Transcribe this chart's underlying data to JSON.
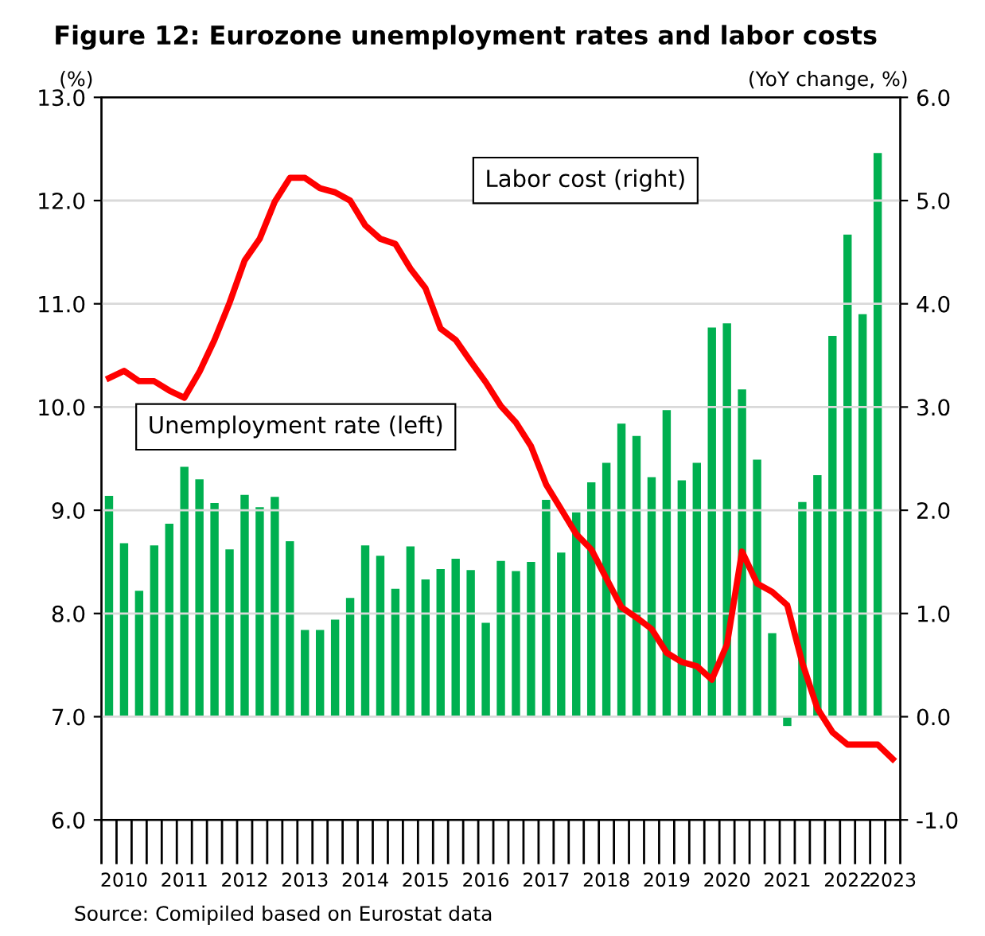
{
  "chart_data": {
    "type": "bar",
    "title": "Figure 12: Eurozone unemployment rates and labor costs",
    "ylabel": "(%)",
    "y2label": "(YoY change, %)",
    "categories": [
      null,
      "2010",
      null,
      null,
      null,
      "2011",
      null,
      null,
      null,
      "2012",
      null,
      null,
      null,
      "2013",
      null,
      null,
      null,
      "2014",
      null,
      null,
      null,
      "2015",
      null,
      null,
      null,
      "2016",
      null,
      null,
      null,
      "2017",
      null,
      null,
      null,
      "2018",
      null,
      null,
      null,
      "2019",
      null,
      null,
      null,
      "2020",
      null,
      null,
      null,
      "2021",
      null,
      null,
      null,
      "2022",
      null,
      null,
      "2023"
    ],
    "series": [
      {
        "axis": "y2",
        "color": "#00b050",
        "values": [
          2.14,
          1.68,
          1.22,
          1.66,
          1.87,
          2.42,
          2.3,
          2.07,
          1.62,
          2.15,
          2.03,
          2.13,
          1.7,
          0.84,
          0.84,
          0.94,
          1.15,
          1.66,
          1.56,
          1.24,
          1.65,
          1.33,
          1.43,
          1.53,
          1.42,
          0.91,
          1.51,
          1.41,
          1.5,
          2.1,
          1.59,
          1.98,
          2.27,
          2.46,
          2.84,
          2.72,
          2.32,
          2.97,
          2.29,
          2.46,
          3.77,
          3.81,
          3.17,
          2.49,
          0.81,
          -0.09,
          2.08,
          2.34,
          3.69,
          4.67,
          3.9,
          5.46,
          null
        ]
      },
      {
        "type": "line",
        "color": "#ff0000",
        "values": [
          10.28,
          10.35,
          10.25,
          10.25,
          10.16,
          10.09,
          10.34,
          10.65,
          11.01,
          11.42,
          11.63,
          11.99,
          12.22,
          12.22,
          12.12,
          12.08,
          12.0,
          11.76,
          11.63,
          11.58,
          11.34,
          11.15,
          10.76,
          10.65,
          10.44,
          10.24,
          10.01,
          9.85,
          9.62,
          9.25,
          9.01,
          8.77,
          8.62,
          8.34,
          8.06,
          7.96,
          7.85,
          7.62,
          7.53,
          7.49,
          7.36,
          7.7,
          8.6,
          8.29,
          8.21,
          8.08,
          7.52,
          7.08,
          6.85,
          6.73,
          6.73,
          6.73,
          6.59
        ]
      }
    ],
    "ylim": [
      6,
      13
    ],
    "yticks": [
      {
        "value": 6,
        "label": "6.0"
      },
      {
        "value": 7,
        "label": "7.0"
      },
      {
        "value": 8,
        "label": "8.0"
      },
      {
        "value": 9,
        "label": "9.0"
      },
      {
        "value": 10,
        "label": "10.0"
      },
      {
        "value": 11,
        "label": "11.0"
      },
      {
        "value": 12,
        "label": "12.0"
      },
      {
        "value": 13,
        "label": "13.0"
      }
    ],
    "y2lim": [
      -1,
      6
    ],
    "y2ticks": [
      {
        "value": -1,
        "label": "-1.0"
      },
      {
        "value": 0,
        "label": "0.0"
      },
      {
        "value": 1,
        "label": "1.0"
      },
      {
        "value": 2,
        "label": "2.0"
      },
      {
        "value": 3,
        "label": "3.0"
      },
      {
        "value": 4,
        "label": "4.0"
      },
      {
        "value": 5,
        "label": "5.0"
      },
      {
        "value": 6,
        "label": "6.0"
      }
    ],
    "grid": "y",
    "annotations": [
      "Unemployment rate (left)",
      "Labor cost (right)",
      "Source: Comipiled based on Eurostat data"
    ]
  }
}
